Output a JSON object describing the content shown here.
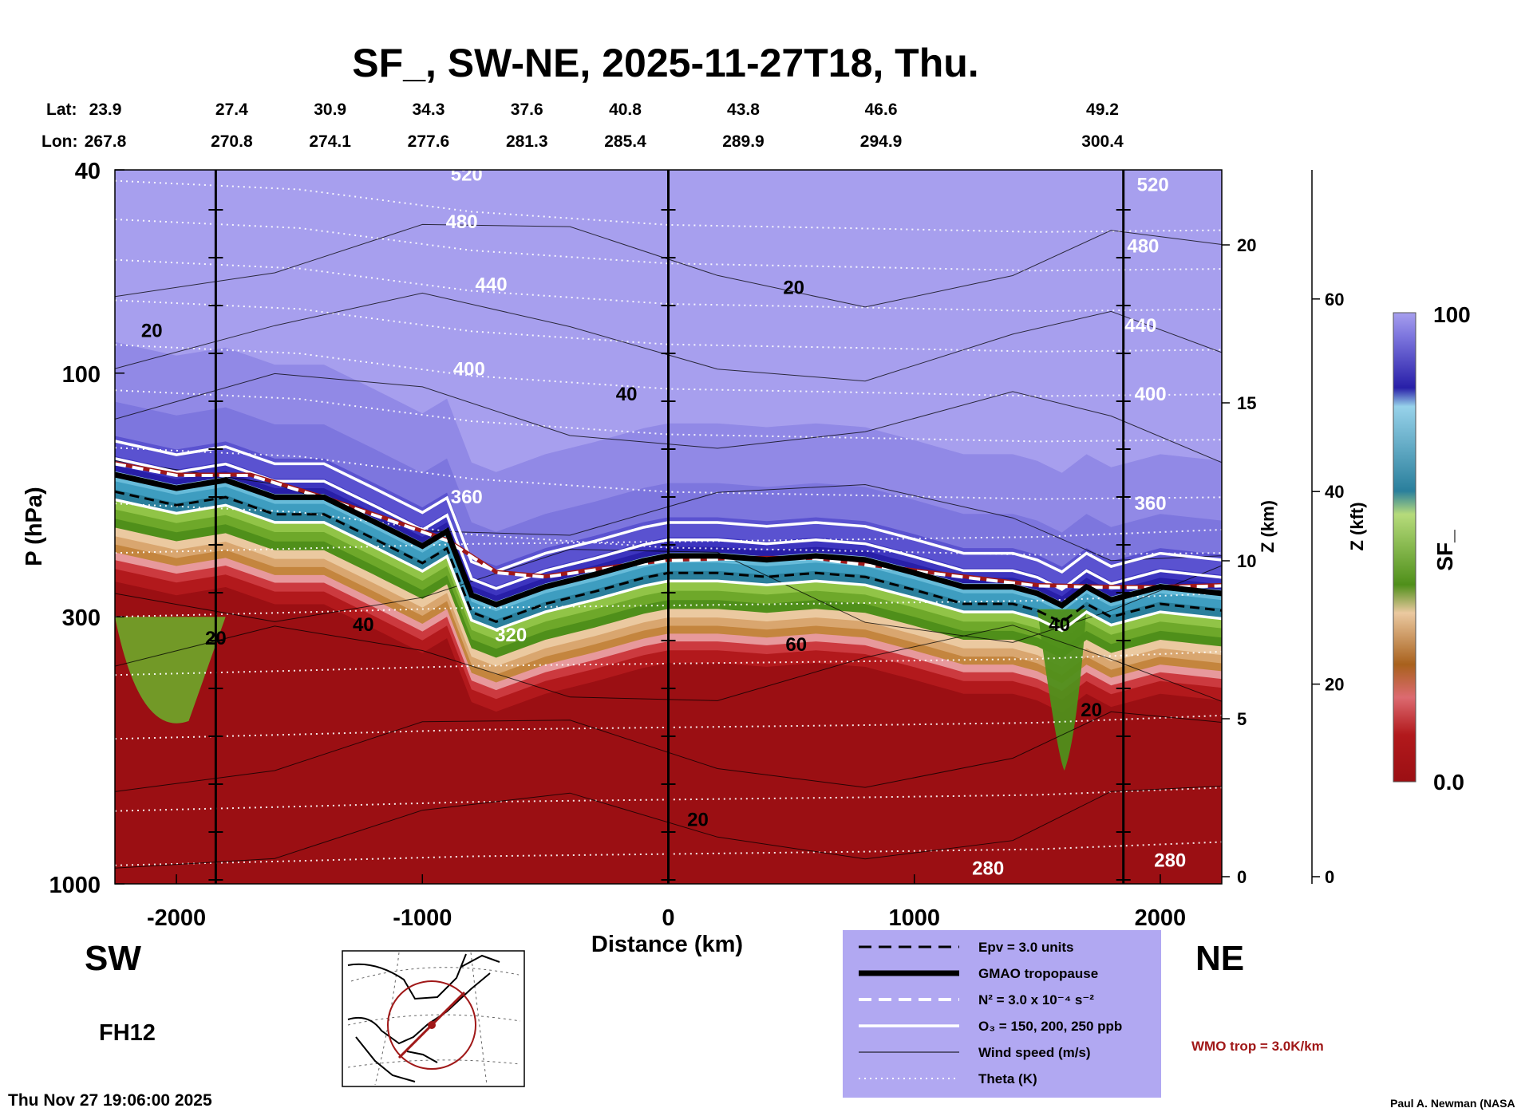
{
  "chart_data": {
    "type": "contour",
    "title": "SF_, SW-NE, 2025-11-27T18, Thu.",
    "forecast_hour": "FH12",
    "timestamp": "Thu Nov 27 19:06:00 2025",
    "credit": "Paul A. Newman (NASA",
    "direction_left": "SW",
    "direction_right": "NE",
    "lat_label": "Lat:",
    "lon_label": "Lon:",
    "lat_values": [
      "23.9",
      "27.4",
      "30.9",
      "34.3",
      "37.6",
      "40.8",
      "43.8",
      "46.6",
      "49.2"
    ],
    "lon_values": [
      "267.8",
      "270.8",
      "274.1",
      "277.6",
      "281.3",
      "285.4",
      "289.9",
      "294.9",
      "300.4"
    ],
    "station_distance_km": [
      -2200,
      -1840,
      -1440,
      -1040,
      -640,
      -240,
      240,
      800,
      1700
    ],
    "xlabel": "Distance (km)",
    "xlim": [
      -2250,
      2250
    ],
    "x_ticks": [
      "-2000",
      "-1000",
      "0",
      "1000",
      "2000"
    ],
    "x_tick_values": [
      -2000,
      -1000,
      0,
      1000,
      2000
    ],
    "ylabel": "P (hPa)",
    "ylim": [
      1000,
      40
    ],
    "y_ticks": [
      "40",
      "100",
      "300",
      "1000"
    ],
    "y_tick_values": [
      40,
      100,
      300,
      1000
    ],
    "z_km_label": "Z (km)",
    "z_km_ticks": [
      "0",
      "5",
      "10",
      "15",
      "20"
    ],
    "z_km_values": [
      0,
      5,
      10,
      15,
      20
    ],
    "z_kft_label": "Z (kft)",
    "z_kft_ticks": [
      "0",
      "20",
      "40",
      "60"
    ],
    "z_kft_values": [
      0,
      20,
      40,
      60
    ],
    "vertical_lines_km": [
      -1840,
      0,
      1850
    ],
    "colorbar": {
      "label": "SF_",
      "max_label": "100",
      "min_label": "0.0",
      "min": 0,
      "max": 100,
      "colors": [
        "#9b0f13",
        "#b2191c",
        "#cc3a3f",
        "#dc6a70",
        "#e7999c",
        "#a8611d",
        "#c4853e",
        "#d9a66f",
        "#ebc9a0",
        "#4f8f1a",
        "#6ea82a",
        "#91c447",
        "#b6db7b",
        "#2a7f9c",
        "#3e9dc0",
        "#67bbd9",
        "#97d2ea",
        "#281fa8",
        "#3d35bf",
        "#5a52d0",
        "#7d76de",
        "#a79fee"
      ]
    },
    "tropopause_pressure": {
      "x": [
        -2250,
        -2000,
        -1800,
        -1600,
        -1400,
        -1200,
        -1000,
        -900,
        -800,
        -700,
        -500,
        -300,
        -100,
        0,
        200,
        400,
        600,
        800,
        1000,
        1200,
        1400,
        1500,
        1600,
        1700,
        1800,
        2000,
        2250
      ],
      "p": [
        158,
        168,
        162,
        175,
        175,
        195,
        218,
        204,
        272,
        284,
        262,
        248,
        233,
        228,
        228,
        232,
        228,
        232,
        246,
        262,
        262,
        270,
        285,
        262,
        278,
        262,
        270
      ]
    },
    "wmo_tropopause_pressure": {
      "x": [
        -2250,
        -2000,
        -1700,
        -1400,
        -1100,
        -900,
        -700,
        -500,
        -300,
        0,
        300,
        600,
        900,
        1200,
        1500,
        1800,
        2000,
        2250
      ],
      "p": [
        150,
        158,
        158,
        175,
        196,
        212,
        245,
        250,
        242,
        232,
        230,
        230,
        240,
        250,
        260,
        262,
        262,
        260
      ]
    },
    "contour_labels": [
      {
        "text": "520",
        "x": -820,
        "p": 42
      },
      {
        "text": "480",
        "x": -840,
        "p": 52
      },
      {
        "text": "440",
        "x": -720,
        "p": 69
      },
      {
        "text": "400",
        "x": -810,
        "p": 101
      },
      {
        "text": "360",
        "x": -820,
        "p": 180
      },
      {
        "text": "520",
        "x": 1970,
        "p": 44
      },
      {
        "text": "480",
        "x": 1930,
        "p": 58
      },
      {
        "text": "440",
        "x": 1920,
        "p": 83
      },
      {
        "text": "400",
        "x": 1960,
        "p": 113
      },
      {
        "text": "360",
        "x": 1960,
        "p": 185
      },
      {
        "text": "320",
        "x": -640,
        "p": 335
      },
      {
        "text": "280",
        "x": 1300,
        "p": 960
      },
      {
        "text": "280",
        "x": 2040,
        "p": 925
      },
      {
        "text": "20",
        "x": -2100,
        "p": 85
      },
      {
        "text": "20",
        "x": 510,
        "p": 70
      },
      {
        "text": "40",
        "x": -170,
        "p": 113
      },
      {
        "text": "20",
        "x": -1840,
        "p": 340
      },
      {
        "text": "40",
        "x": -1240,
        "p": 320
      },
      {
        "text": "60",
        "x": 520,
        "p": 350
      },
      {
        "text": "20",
        "x": 120,
        "p": 770
      },
      {
        "text": "40",
        "x": 1590,
        "p": 320
      },
      {
        "text": "20",
        "x": 1720,
        "p": 470
      }
    ]
  },
  "legend": {
    "items": [
      {
        "style": "dashed-black",
        "label": "Epv = 3.0 units"
      },
      {
        "style": "thick-black",
        "label": "GMAO tropopause"
      },
      {
        "style": "dashed-white",
        "label": "N² = 3.0 x 10⁻⁴ s⁻²"
      },
      {
        "style": "solid-white",
        "label": "O₃ = 150, 200, 250 ppb"
      },
      {
        "style": "thin-black",
        "label": "Wind speed (m/s)"
      },
      {
        "style": "dotted-white",
        "label": "Theta (K)"
      }
    ],
    "wmo_note": "WMO trop = 3.0K/km"
  },
  "colors": {
    "legend_bg": "#b1a8f2",
    "wmo_red": "#a01818",
    "stratosphere": "#a79fee"
  }
}
